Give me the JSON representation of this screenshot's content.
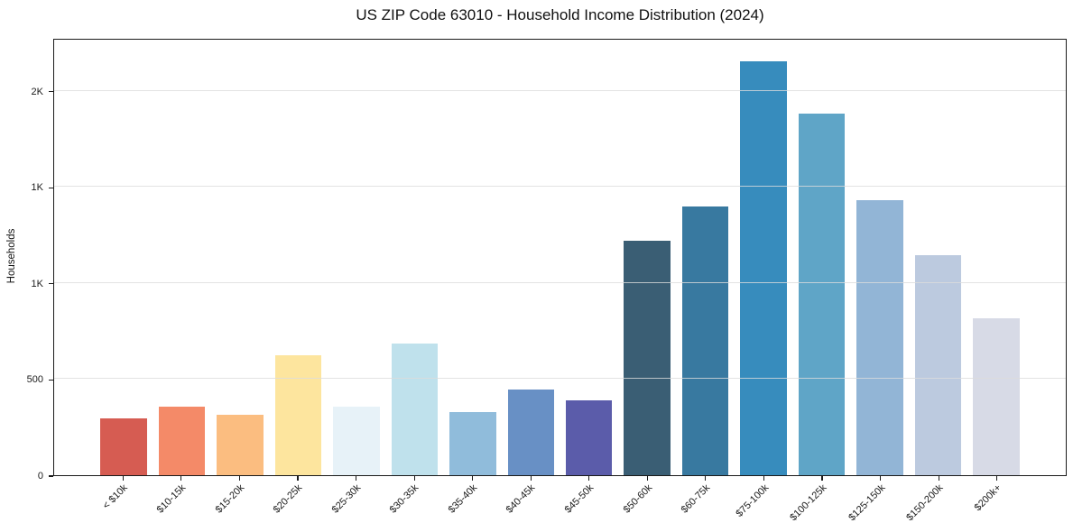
{
  "chart_data": {
    "type": "bar",
    "title": "US ZIP Code 63010 - Household Income Distribution (2024)",
    "xlabel": "",
    "ylabel": "Households",
    "categories": [
      "< $10k",
      "$10-15k",
      "$15-20k",
      "$20-25k",
      "$25-30k",
      "$30-35k",
      "$35-40k",
      "$40-45k",
      "$45-50k",
      "$50-60k",
      "$60-75k",
      "$75-100k",
      "$100-125k",
      "$125-150k",
      "$150-200k",
      "$200k+"
    ],
    "values": [
      295,
      355,
      315,
      625,
      355,
      685,
      330,
      445,
      390,
      1220,
      1400,
      2155,
      1880,
      1430,
      1145,
      815
    ],
    "bar_colors": [
      "#d65c52",
      "#f48a68",
      "#fbbd80",
      "#fde59e",
      "#e7f2f8",
      "#bfe1ec",
      "#90bcdb",
      "#6890c5",
      "#5b5caa",
      "#3a5e74",
      "#3879a0",
      "#378cbd",
      "#5fa5c7",
      "#92b5d6",
      "#bccadf",
      "#d7dae6"
    ],
    "ylim": [
      0,
      2275
    ],
    "yticks": [
      {
        "value": 0,
        "label": "0"
      },
      {
        "value": 500,
        "label": "500"
      },
      {
        "value": 1000,
        "label": "1K"
      },
      {
        "value": 1500,
        "label": "1K"
      },
      {
        "value": 2000,
        "label": "2K"
      }
    ],
    "grid": "horizontal-above-bars",
    "legend": null,
    "bar_width_fraction": 0.8,
    "x_tick_rotation_deg": 45
  },
  "colors": {
    "background": "#ffffff",
    "axis": "#1a1a1a",
    "grid": "#e3e3e3",
    "text": "#111111"
  }
}
